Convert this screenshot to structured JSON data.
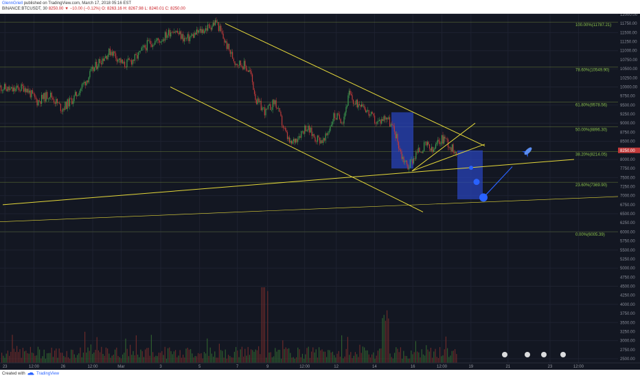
{
  "header": {
    "author": "GlennGriell",
    "published_text": "published on TradingView.com, March 17, 2018 05:16 EST",
    "symbol_text": "BINANCE:BTCUSDT, 30",
    "price": "8250.00",
    "change": "▼ −10.00 (−0.12%)",
    "ohlc": {
      "o": "O: 8263.16",
      "h": "H: 8267.98",
      "l": "L: 8240.01",
      "c": "C: 8250.00"
    }
  },
  "footer": {
    "created_with": "Created with",
    "brand": "TradingView"
  },
  "chart_data": {
    "type": "candlestick",
    "title": "BINANCE:BTCUSDT, 30",
    "ylim": [
      2500,
      12000
    ],
    "y_ticks": [
      12000,
      11750,
      11500,
      11250,
      11000,
      10750,
      10500,
      10250,
      10000,
      9750,
      9500,
      9250,
      9000,
      8750,
      8500,
      8250,
      8000,
      7750,
      7500,
      7250,
      7000,
      6750,
      6500,
      6250,
      6000,
      5750,
      5500,
      5250,
      5000,
      4750,
      4500,
      4250,
      4000,
      3750,
      3500,
      3250,
      3000,
      2750,
      2500
    ],
    "x_ticks": [
      {
        "label": "23",
        "pos": 0.008
      },
      {
        "label": "12:00",
        "pos": 0.055
      },
      {
        "label": "26",
        "pos": 0.102
      },
      {
        "label": "12:00",
        "pos": 0.15
      },
      {
        "label": "Mar",
        "pos": 0.196
      },
      {
        "label": "3",
        "pos": 0.26
      },
      {
        "label": "5",
        "pos": 0.323
      },
      {
        "label": "7",
        "pos": 0.384
      },
      {
        "label": "9",
        "pos": 0.433
      },
      {
        "label": "12:00",
        "pos": 0.493
      },
      {
        "label": "12",
        "pos": 0.544
      },
      {
        "label": "14",
        "pos": 0.606
      },
      {
        "label": "16",
        "pos": 0.668
      },
      {
        "label": "12:00",
        "pos": 0.715
      },
      {
        "label": "19",
        "pos": 0.762
      },
      {
        "label": "21",
        "pos": 0.822
      },
      {
        "label": "23",
        "pos": 0.89
      },
      {
        "label": "12:00",
        "pos": 0.936
      }
    ],
    "fib_levels": [
      {
        "label": "100.00%(11787.21)",
        "value": 11787.21
      },
      {
        "label": "78.60%(10549.90)",
        "value": 10549.9
      },
      {
        "label": "61.80%(9578.56)",
        "value": 9578.56
      },
      {
        "label": "50.00%(8896.30)",
        "value": 8896.3
      },
      {
        "label": "38.20%(8214.05)",
        "value": 8214.05
      },
      {
        "label": "23.60%(7369.90)",
        "value": 7369.9
      },
      {
        "label": "0.00%(6005.39)",
        "value": 6005.39
      }
    ],
    "last_price": 8250.0,
    "price_path": [
      [
        0.0,
        10000
      ],
      [
        0.02,
        9900
      ],
      [
        0.04,
        10000
      ],
      [
        0.06,
        9600
      ],
      [
        0.08,
        9800
      ],
      [
        0.1,
        9400
      ],
      [
        0.12,
        9700
      ],
      [
        0.14,
        10200
      ],
      [
        0.16,
        10700
      ],
      [
        0.18,
        11000
      ],
      [
        0.2,
        10600
      ],
      [
        0.22,
        10800
      ],
      [
        0.24,
        11200
      ],
      [
        0.26,
        11300
      ],
      [
        0.28,
        11600
      ],
      [
        0.3,
        11300
      ],
      [
        0.32,
        11500
      ],
      [
        0.338,
        11650
      ],
      [
        0.35,
        11800
      ],
      [
        0.365,
        11200
      ],
      [
        0.38,
        10700
      ],
      [
        0.395,
        10600
      ],
      [
        0.405,
        10400
      ],
      [
        0.415,
        9600
      ],
      [
        0.43,
        9300
      ],
      [
        0.445,
        9600
      ],
      [
        0.46,
        8800
      ],
      [
        0.47,
        8400
      ],
      [
        0.48,
        8600
      ],
      [
        0.495,
        8900
      ],
      [
        0.51,
        8600
      ],
      [
        0.525,
        8500
      ],
      [
        0.54,
        9200
      ],
      [
        0.555,
        9100
      ],
      [
        0.565,
        9800
      ],
      [
        0.575,
        9500
      ],
      [
        0.585,
        9600
      ],
      [
        0.595,
        9300
      ],
      [
        0.61,
        9000
      ],
      [
        0.625,
        9200
      ],
      [
        0.64,
        8700
      ],
      [
        0.65,
        8100
      ],
      [
        0.66,
        7800
      ],
      [
        0.675,
        8200
      ],
      [
        0.69,
        8400
      ],
      [
        0.7,
        8200
      ],
      [
        0.71,
        8500
      ],
      [
        0.72,
        8600
      ],
      [
        0.73,
        8300
      ],
      [
        0.74,
        8250
      ]
    ],
    "volume_ylim": [
      0,
      30
    ]
  }
}
